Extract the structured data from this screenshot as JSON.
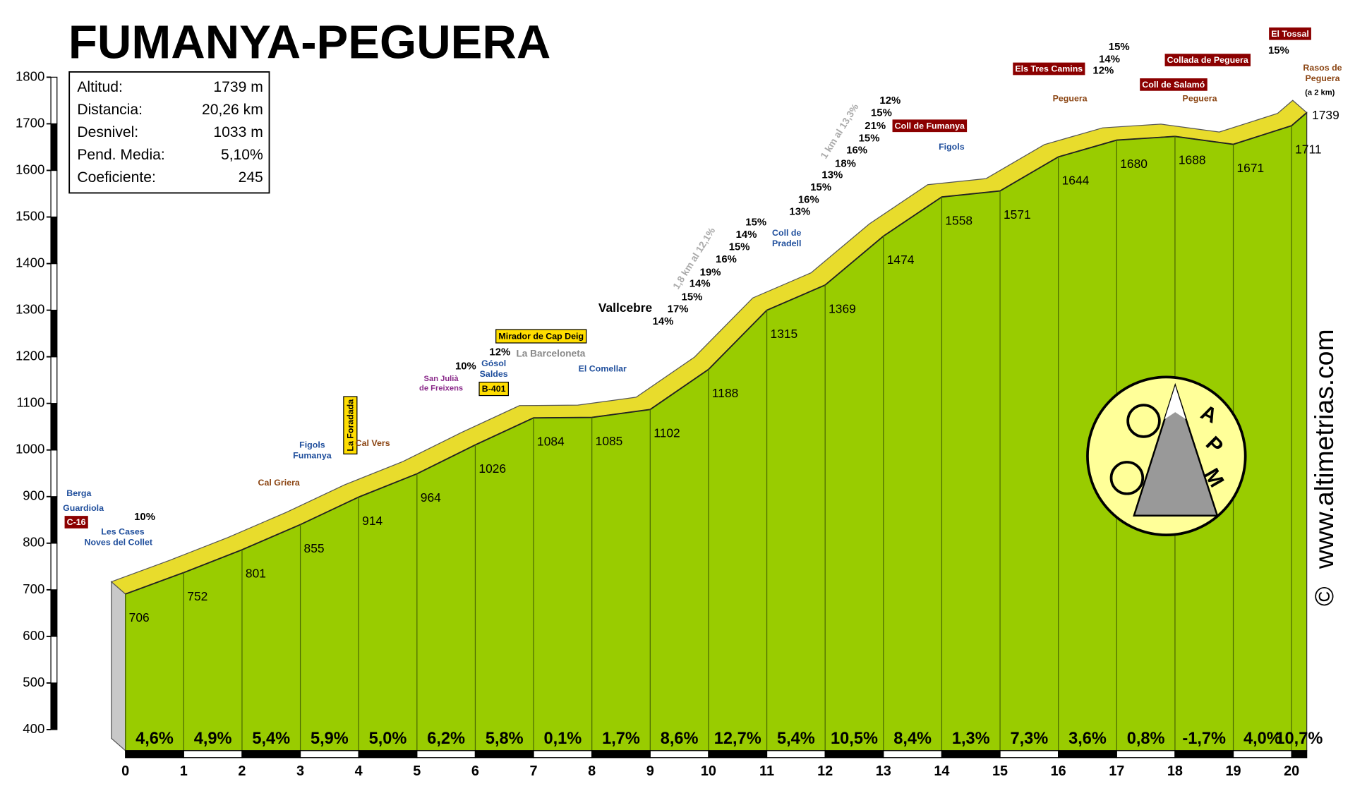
{
  "chart_data": {
    "type": "profile",
    "title": "FUMANYA-PEGUERA",
    "stats": [
      {
        "label": "Altitud:",
        "value": "1739 m"
      },
      {
        "label": "Distancia:",
        "value": "20,26 km"
      },
      {
        "label": "Desnivel:",
        "value": "1033 m"
      },
      {
        "label": "Pend. Media:",
        "value": "5,10%"
      },
      {
        "label": "Coeficiente:",
        "value": "245"
      }
    ],
    "xlim": [
      0,
      20.26
    ],
    "xticks": [
      0,
      1,
      2,
      3,
      4,
      5,
      6,
      7,
      8,
      9,
      10,
      11,
      12,
      13,
      14,
      15,
      16,
      17,
      18,
      19,
      20
    ],
    "ylim": [
      400,
      1800
    ],
    "yticks": [
      400,
      500,
      600,
      700,
      800,
      900,
      1000,
      1100,
      1200,
      1300,
      1400,
      1500,
      1600,
      1700,
      1800
    ],
    "profile": {
      "color": "#99cc00",
      "road_color": "#e8dc2c",
      "x": [
        0,
        1,
        2,
        3,
        4,
        5,
        6,
        7,
        8,
        9,
        10,
        11,
        12,
        13,
        14,
        15,
        16,
        17,
        18,
        19,
        20,
        20.26
      ],
      "values": [
        706,
        752,
        801,
        855,
        914,
        964,
        1026,
        1084,
        1085,
        1102,
        1188,
        1315,
        1369,
        1474,
        1558,
        1571,
        1644,
        1680,
        1688,
        1671,
        1711,
        1739
      ]
    },
    "gradients": {
      "values": [
        4.6,
        4.9,
        5.4,
        5.9,
        5.0,
        6.2,
        5.8,
        0.1,
        1.7,
        8.6,
        12.7,
        5.4,
        10.5,
        8.4,
        1.3,
        7.3,
        3.6,
        0.8,
        -1.7,
        4.0,
        10.7
      ],
      "value_labels": [
        "4,6%",
        "4,9%",
        "5,4%",
        "5,9%",
        "5,0%",
        "6,2%",
        "5,8%",
        "0,1%",
        "1,7%",
        "8,6%",
        "12,7%",
        "5,4%",
        "10,5%",
        "8,4%",
        "1,3%",
        "7,3%",
        "3,6%",
        "0,8%",
        "-1,7%",
        "4,0%",
        "10,7%"
      ]
    },
    "annotations": [
      "Berga",
      "Guardiola",
      "C-16",
      "Les Cases",
      "Noves del Collet",
      "10%",
      "Figols",
      "Fumanya",
      "Cal Griera",
      "La Foradada",
      "Cal Vers",
      "San Julià",
      "de Freixens",
      "10%",
      "Gósol",
      "Saldes",
      "B-401",
      "12%",
      "Mirador de Cap Deig",
      "La Barceloneta",
      "El Comellar",
      "Vallcebre",
      "14%",
      "17%",
      "15%",
      "14%",
      "19%",
      "16%",
      "15%",
      "14%",
      "15%",
      "1,8 km al 12,1%",
      "Coll de",
      "Pradell",
      "13%",
      "16%",
      "15%",
      "13%",
      "18%",
      "16%",
      "15%",
      "21%",
      "15%",
      "12%",
      "1 km al 13,3%",
      "Coll de Fumanya",
      "Figols",
      "Els Tres Camins",
      "Peguera",
      "12%",
      "14%",
      "15%",
      "Collada de Peguera",
      "Coll de Salamó",
      "Peguera",
      "El Tossal",
      "15%",
      "Rasos de",
      "Peguera",
      "(a 2 km)",
      "www.altimetrias.com",
      "©"
    ],
    "logo_letters": [
      "A",
      "P",
      "M"
    ]
  }
}
